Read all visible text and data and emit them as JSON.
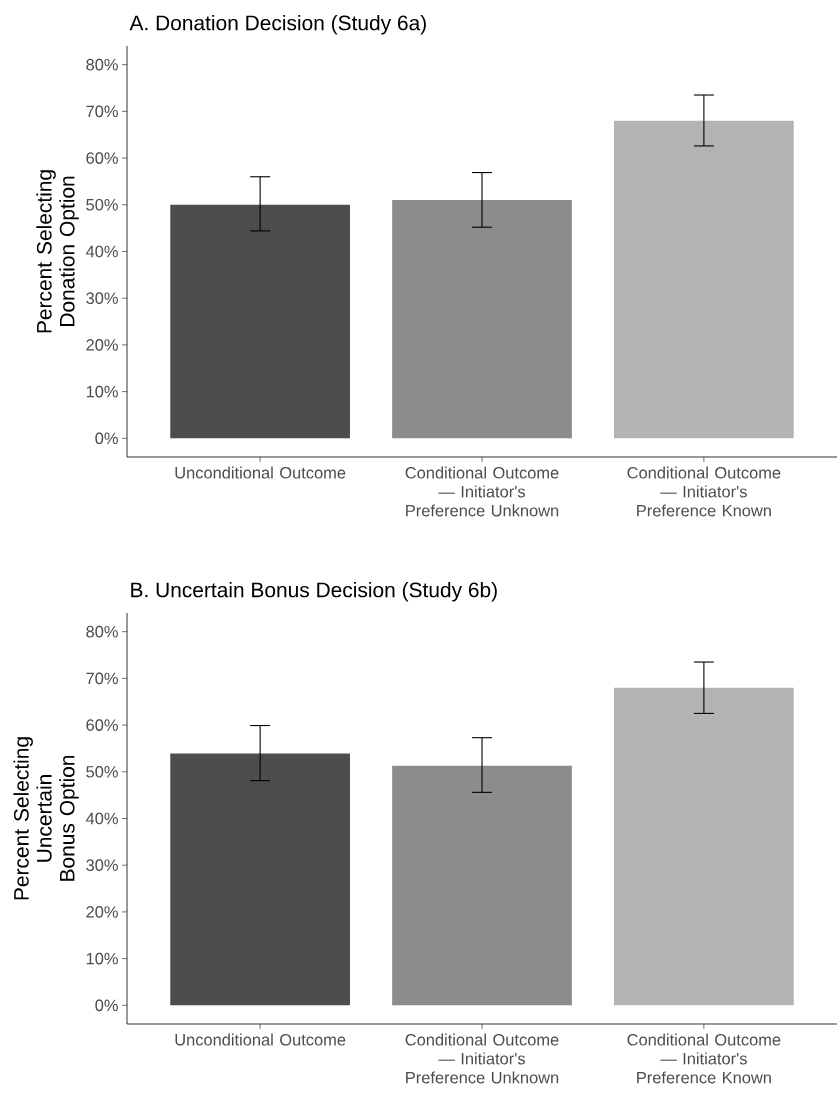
{
  "chart_data": [
    {
      "type": "bar",
      "title": "A. Donation Decision (Study 6a)",
      "ylabel": "Percent Selecting Donation Option",
      "categories": [
        "Unconditional Outcome",
        "Conditional Outcome — Initiator's Preference Unknown",
        "Conditional Outcome — Initiator's Preference Known"
      ],
      "values": [
        50.0,
        51.0,
        68.0
      ],
      "errors": [
        [
          44.4,
          56.0
        ],
        [
          45.2,
          56.9
        ],
        [
          62.6,
          73.5
        ]
      ],
      "colors": [
        "#4d4d4d",
        "#8c8c8c",
        "#b3b3b3"
      ],
      "ylim": [
        -4,
        84
      ],
      "yticks": [
        {
          "value": 0,
          "label": "0%"
        },
        {
          "value": 10,
          "label": "10%"
        },
        {
          "value": 20,
          "label": "20%"
        },
        {
          "value": 30,
          "label": "30%"
        },
        {
          "value": 40,
          "label": "40%"
        },
        {
          "value": 50,
          "label": "50%"
        },
        {
          "value": 60,
          "label": "60%"
        },
        {
          "value": 70,
          "label": "70%"
        },
        {
          "value": 80,
          "label": "80%"
        }
      ]
    },
    {
      "type": "bar",
      "title": "B. Uncertain Bonus Decision (Study 6b)",
      "ylabel": "Percent Selecting Uncertain Bonus Option",
      "categories": [
        "Unconditional Outcome",
        "Conditional Outcome — Initiator's Preference Unknown",
        "Conditional Outcome — Initiator's Preference Known"
      ],
      "values": [
        53.9,
        51.3,
        68.0
      ],
      "errors": [
        [
          48.1,
          59.9
        ],
        [
          45.6,
          57.3
        ],
        [
          62.5,
          73.5
        ]
      ],
      "colors": [
        "#4d4d4d",
        "#8c8c8c",
        "#b3b3b3"
      ],
      "ylim": [
        -4,
        84
      ],
      "yticks": [
        {
          "value": 0,
          "label": "0%"
        },
        {
          "value": 10,
          "label": "10%"
        },
        {
          "value": 20,
          "label": "20%"
        },
        {
          "value": 30,
          "label": "30%"
        },
        {
          "value": 40,
          "label": "40%"
        },
        {
          "value": 50,
          "label": "50%"
        },
        {
          "value": 60,
          "label": "60%"
        },
        {
          "value": 70,
          "label": "70%"
        },
        {
          "value": 80,
          "label": "80%"
        }
      ]
    }
  ]
}
